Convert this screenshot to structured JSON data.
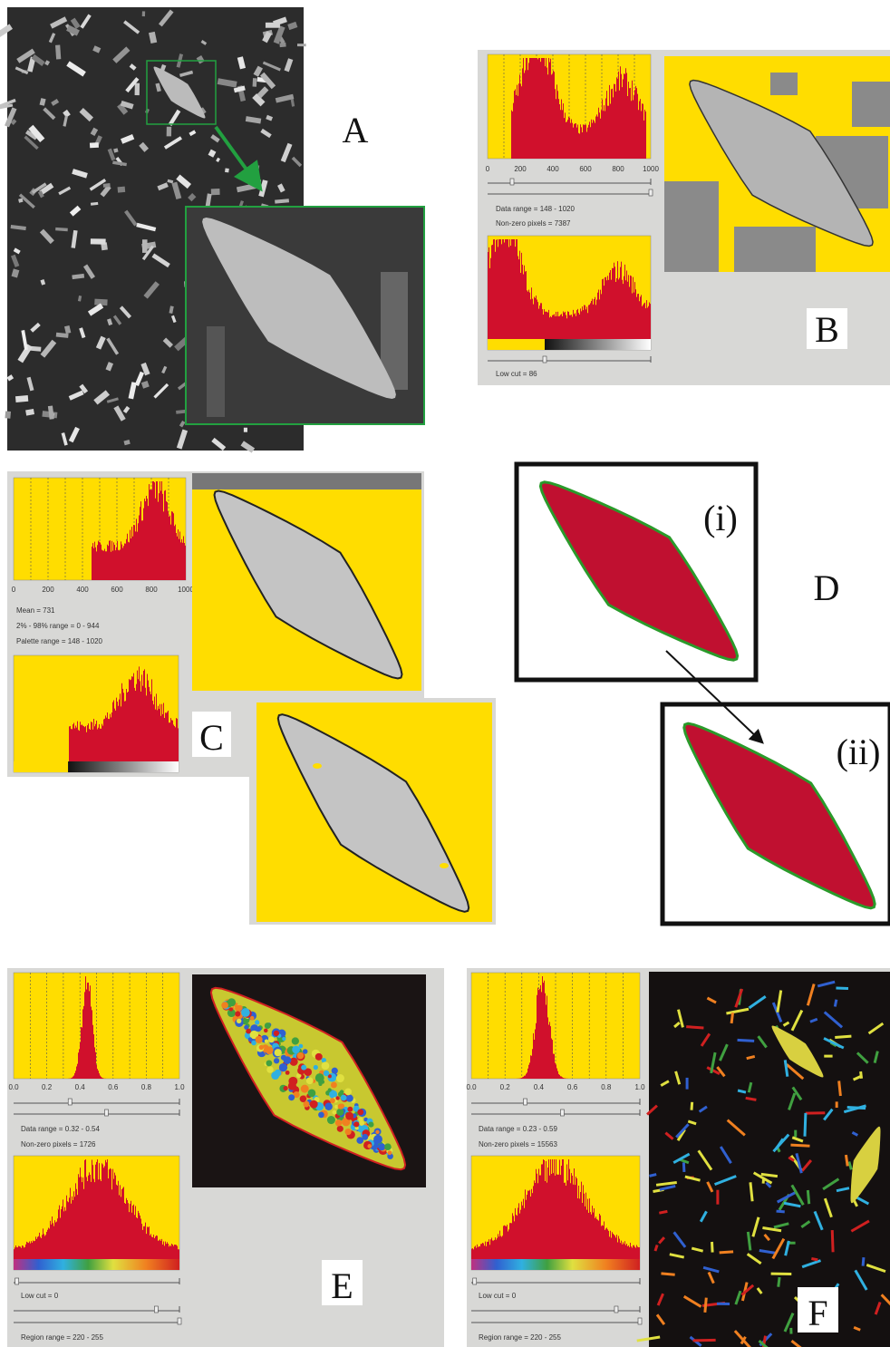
{
  "panel_a": {
    "label": "A"
  },
  "panel_b": {
    "label": "B",
    "histogram_ticks": [
      "0",
      "200",
      "400",
      "600",
      "800",
      "1000"
    ],
    "data_range": "Data range = 148 - 1020",
    "non_zero_pixels": "Non-zero pixels = 7387",
    "low_cut": "Low cut = 86"
  },
  "panel_c": {
    "label": "C",
    "histogram_ticks": [
      "0",
      "200",
      "400",
      "600",
      "800",
      "1000"
    ],
    "mean": "Mean = 731",
    "percentile_range": "2% - 98% range = 0 - 944",
    "palette_range": "Palette range = 148 - 1020"
  },
  "panel_d": {
    "label": "D",
    "inset_labels": [
      "(i)",
      "(ii)"
    ]
  },
  "panel_e": {
    "label": "E",
    "histogram_ticks": [
      "0.0",
      "0.2",
      "0.4",
      "0.6",
      "0.8",
      "1.0"
    ],
    "data_range": "Data range = 0.32 - 0.54",
    "non_zero_pixels": "Non-zero pixels = 1726",
    "low_cut": "Low cut = 0",
    "region_range": "Region range = 220 - 255"
  },
  "panel_f": {
    "label": "F",
    "histogram_ticks": [
      "0.0",
      "0.2",
      "0.4",
      "0.6",
      "0.8",
      "1.0"
    ],
    "data_range": "Data range = 0.23 - 0.59",
    "non_zero_pixels": "Non-zero pixels = 15563",
    "low_cut": "Low cut = 0",
    "region_range": "Region range = 220 - 255"
  }
}
